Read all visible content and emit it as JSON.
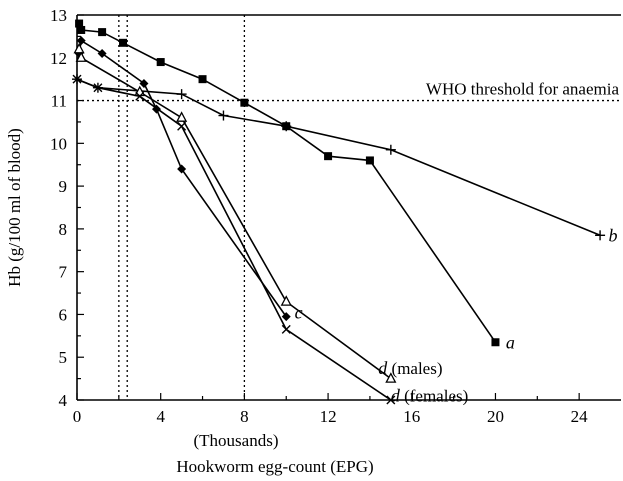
{
  "chart_data": {
    "type": "line",
    "title": "",
    "xlabel": "Hookworm egg-count (EPG)",
    "xlabel_units": "(Thousands)",
    "ylabel": "Hb (g/100 ml of blood)",
    "xlim": [
      0,
      26
    ],
    "ylim": [
      4,
      13
    ],
    "x_ticks": [
      0,
      4,
      8,
      12,
      16,
      20,
      24
    ],
    "y_ticks": [
      4,
      5,
      6,
      7,
      8,
      9,
      10,
      11,
      12,
      13
    ],
    "grid": false,
    "threshold": {
      "y": 11,
      "label": "WHO threshold for anaemia"
    },
    "vertical_reference_lines": [
      2,
      2.4,
      8
    ],
    "series": [
      {
        "name": "a",
        "marker": "square",
        "x": [
          0.1,
          0.2,
          1.2,
          2.2,
          4.0,
          6.0,
          8.0,
          10.0,
          12.0,
          14.0,
          20.0
        ],
        "y": [
          12.8,
          12.65,
          12.6,
          12.35,
          11.9,
          11.5,
          10.95,
          10.4,
          9.7,
          9.6,
          5.35
        ]
      },
      {
        "name": "b",
        "marker": "plus",
        "x": [
          0.0,
          1.0,
          5.0,
          7.0,
          10.0,
          15.0,
          25.0
        ],
        "y": [
          11.5,
          11.3,
          11.15,
          10.65,
          10.4,
          9.85,
          7.85
        ]
      },
      {
        "name": "c",
        "marker": "diamond",
        "x": [
          0.1,
          0.2,
          1.2,
          3.2,
          3.8,
          5.0,
          10.0
        ],
        "y": [
          12.1,
          12.4,
          12.1,
          11.4,
          10.8,
          9.4,
          5.95
        ]
      },
      {
        "name": "d (males)",
        "marker": "triangle",
        "x": [
          0.1,
          0.2,
          3.0,
          5.0,
          10.0,
          15.0
        ],
        "y": [
          12.2,
          12.0,
          11.2,
          10.6,
          6.3,
          4.5
        ]
      },
      {
        "name": "d (females)",
        "marker": "x",
        "x": [
          0.0,
          1.0,
          3.0,
          5.0,
          10.0,
          15.0
        ],
        "y": [
          11.5,
          11.3,
          11.1,
          10.4,
          5.65,
          4.0
        ]
      }
    ],
    "labels": [
      {
        "text": "a",
        "x": 20.5,
        "y": 5.35
      },
      {
        "text": "b",
        "x": 25.4,
        "y": 7.85
      },
      {
        "text": "c",
        "x": 10.4,
        "y": 6.05
      },
      {
        "text": "d",
        "paren": "(males)",
        "x": 14.4,
        "y": 4.75
      },
      {
        "text": "d",
        "paren": "(females)",
        "x": 15.0,
        "y": 4.1
      }
    ]
  }
}
